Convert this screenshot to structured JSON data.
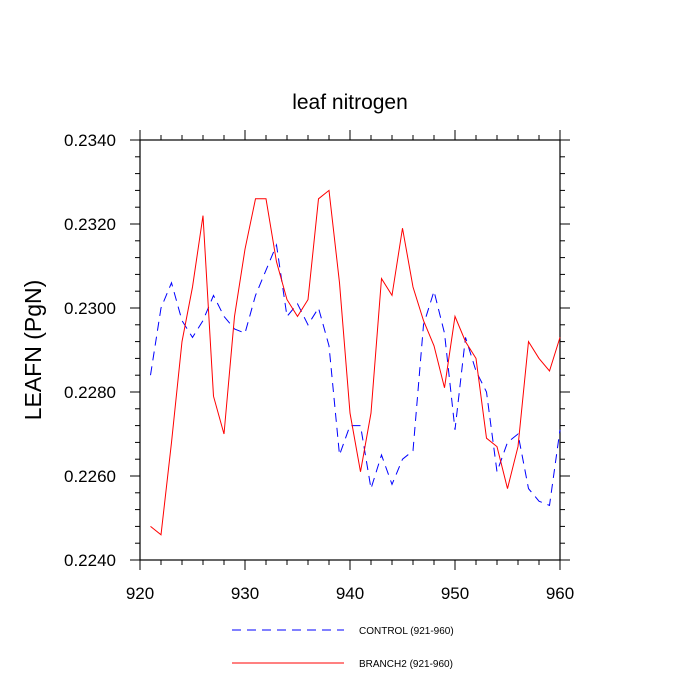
{
  "chart_data": {
    "type": "line",
    "title": "leaf nitrogen",
    "xlabel": "",
    "ylabel": "LEAFN  (PgN)",
    "xlim": [
      920,
      960
    ],
    "ylim": [
      0.224,
      0.234
    ],
    "x_ticks": [
      920,
      930,
      940,
      950,
      960
    ],
    "y_ticks": [
      "0.2240",
      "0.2260",
      "0.2280",
      "0.2300",
      "0.2320",
      "0.2340"
    ],
    "grid": false,
    "legend_position": "bottom",
    "x": [
      921,
      922,
      923,
      924,
      925,
      926,
      927,
      928,
      929,
      930,
      931,
      932,
      933,
      934,
      935,
      936,
      937,
      938,
      939,
      940,
      941,
      942,
      943,
      944,
      945,
      946,
      947,
      948,
      949,
      950,
      951,
      952,
      953,
      954,
      955,
      956,
      957,
      958,
      959,
      960
    ],
    "series": [
      {
        "name": "CONTROL (921-960)",
        "color": "#0000ff",
        "dash": "dashed",
        "values": [
          0.2284,
          0.23,
          0.2306,
          0.2297,
          0.2293,
          0.2297,
          0.2303,
          0.2298,
          0.2295,
          0.2294,
          0.2303,
          0.2309,
          0.2315,
          0.2298,
          0.2301,
          0.2296,
          0.23,
          0.2291,
          0.2265,
          0.2272,
          0.2272,
          0.2257,
          0.2265,
          0.2258,
          0.2264,
          0.2266,
          0.2296,
          0.2304,
          0.2294,
          0.2271,
          0.2293,
          0.2285,
          0.228,
          0.2261,
          0.2268,
          0.227,
          0.2257,
          0.2254,
          0.2253,
          0.2271
        ]
      },
      {
        "name": "BRANCH2 (921-960)",
        "color": "#ff0000",
        "dash": "solid",
        "values": [
          0.2248,
          0.2246,
          0.2268,
          0.2292,
          0.2305,
          0.2322,
          0.2279,
          0.227,
          0.2298,
          0.2314,
          0.2326,
          0.2326,
          0.2311,
          0.2302,
          0.2298,
          0.2302,
          0.2326,
          0.2328,
          0.2306,
          0.2275,
          0.2261,
          0.2275,
          0.2307,
          0.2303,
          0.2319,
          0.2305,
          0.2297,
          0.2291,
          0.2281,
          0.2298,
          0.2292,
          0.2288,
          0.2269,
          0.2267,
          0.2257,
          0.2267,
          0.2292,
          0.2288,
          0.2285,
          0.2293
        ]
      }
    ]
  }
}
